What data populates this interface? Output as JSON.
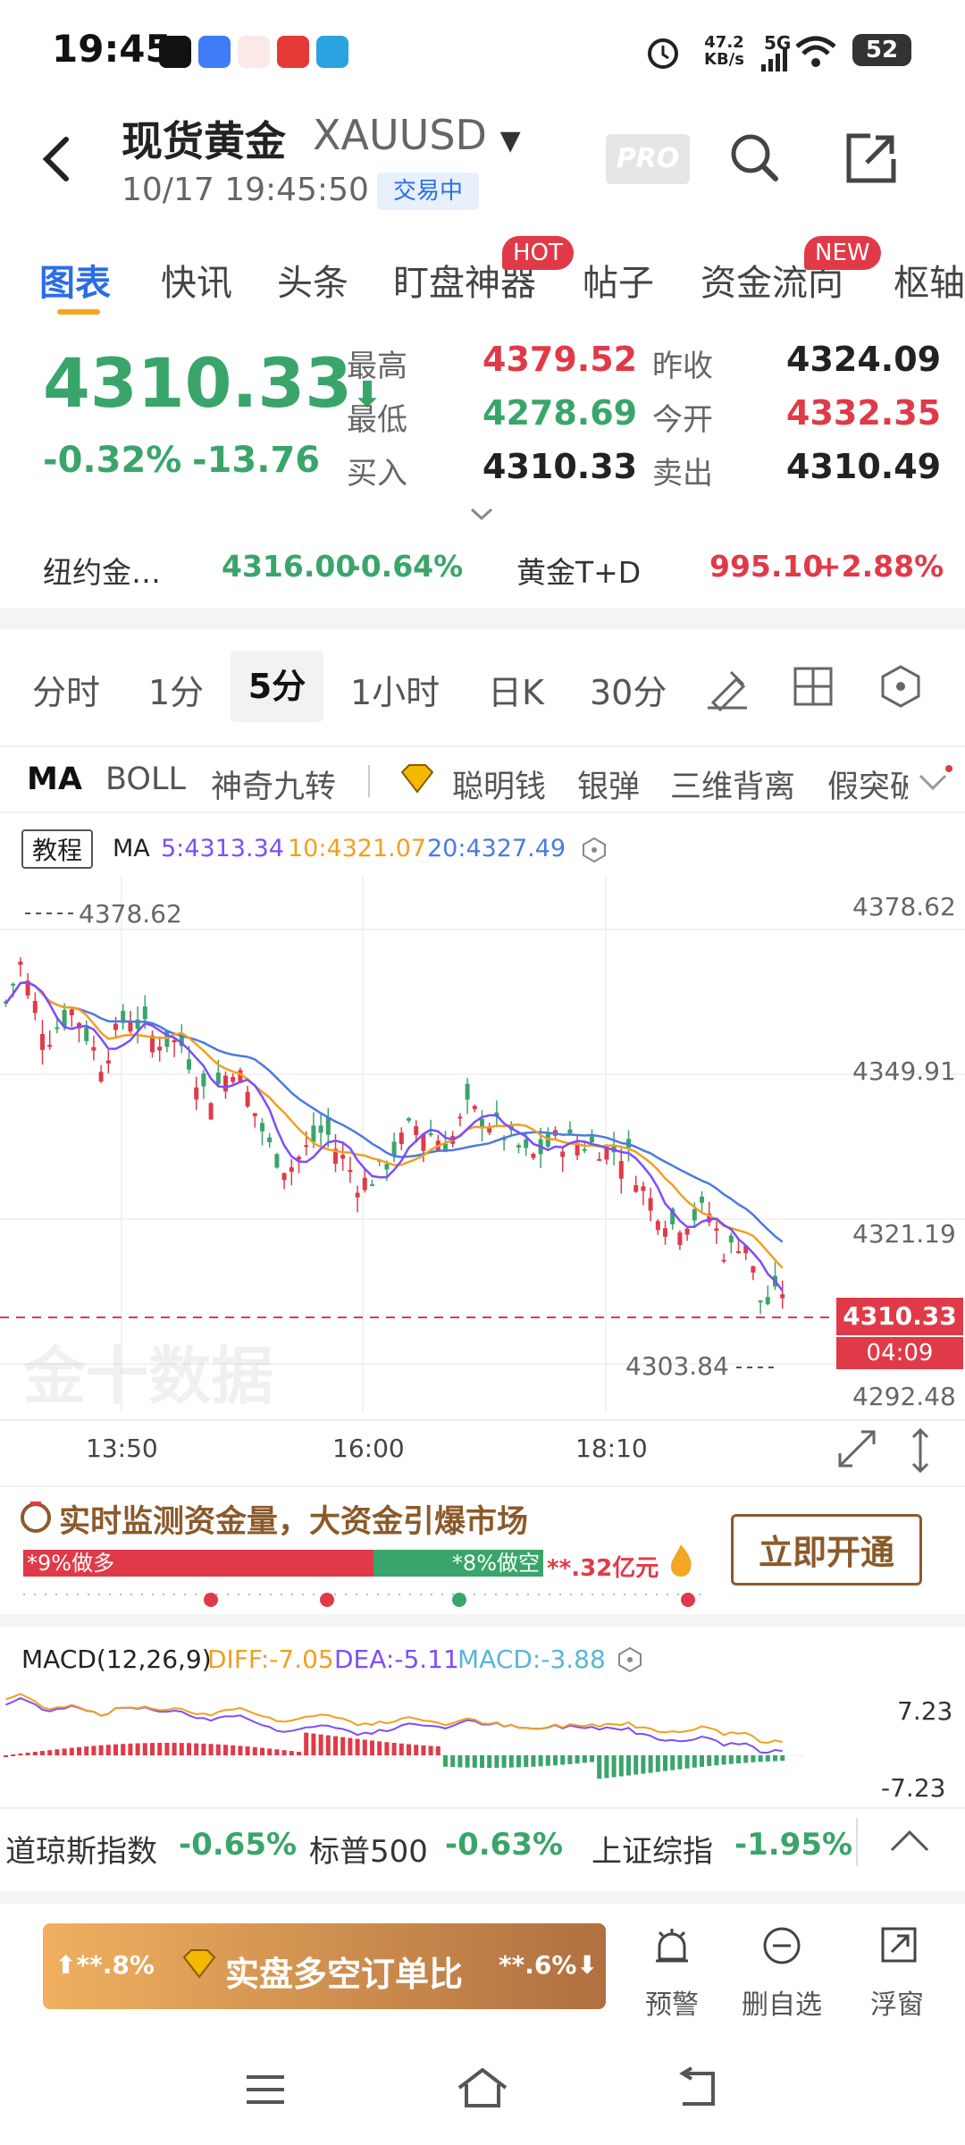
{
  "status_bar": {
    "time": "19:45",
    "net_speed": "47.2",
    "net_unit": "KB/s",
    "network": "5G",
    "battery": "52",
    "notification_apps": [
      "tiktok-icon",
      "browser-icon",
      "news-icon",
      "shop-icon",
      "telegram-icon"
    ]
  },
  "header": {
    "title": "现货黄金",
    "symbol": "XAUUSD",
    "datetime": "10/17 19:45:50",
    "trade_status": "交易中",
    "pro_label": "PRO"
  },
  "tabs": [
    {
      "label": "图表",
      "active": true
    },
    {
      "label": "快讯"
    },
    {
      "label": "头条"
    },
    {
      "label": "盯盘神器",
      "badge": "HOT"
    },
    {
      "label": "帖子"
    },
    {
      "label": "资金流向",
      "badge": "NEW"
    },
    {
      "label": "枢轴"
    }
  ],
  "quote": {
    "price": "4310.33",
    "change_pct": "-0.32%",
    "change": "-13.76",
    "high_label": "最高",
    "high": "4379.52",
    "low_label": "最低",
    "low": "4278.69",
    "bid_label": "买入",
    "bid": "4310.33",
    "prev_close_label": "昨收",
    "prev_close": "4324.09",
    "open_label": "今开",
    "open": "4332.35",
    "ask_label": "卖出",
    "ask": "4310.49"
  },
  "related": [
    {
      "name": "纽约金…",
      "price": "4316.00",
      "change": "-0.64%"
    },
    {
      "name": "黄金T+D",
      "price": "995.10",
      "change": "+2.88%"
    }
  ],
  "periods": [
    "分时",
    "1分",
    "5分",
    "1小时",
    "日K",
    "30分"
  ],
  "indicators": [
    "MA",
    "BOLL",
    "神奇九转",
    "聪明钱",
    "银弹",
    "三维背离",
    "假突破"
  ],
  "chart": {
    "tutorial_label": "教程",
    "ma_label": "MA",
    "ma5": "5:4313.34",
    "ma10": "10:4321.07",
    "ma20": "20:4327.49",
    "high_marker": "4378.62",
    "low_marker": "4303.84",
    "y_ticks": [
      "4378.62",
      "4349.91",
      "4321.19",
      "4292.48"
    ],
    "current_price": "4310.33",
    "countdown": "04:09",
    "x_ticks": [
      "13:50",
      "16:00",
      "18:10"
    ],
    "watermark": "金十数据"
  },
  "chart_data": {
    "type": "candlestick",
    "y_range": [
      4292.48,
      4378.62
    ],
    "ma5": 4313.34,
    "ma10": 4321.07,
    "ma20": 4327.49,
    "last": 4310.33
  },
  "promo": {
    "title": "实时监测资金量，大资金引爆市场",
    "long_label": "*9%做多",
    "short_label": "*8%做空",
    "amount": "**.32亿元",
    "cta": "立即开通"
  },
  "macd": {
    "label": "MACD(12,26,9)",
    "diff": "DIFF:-7.05",
    "dea": "DEA:-5.11",
    "macd": "MACD:-3.88",
    "y_top": "7.23",
    "y_bottom": "-7.23"
  },
  "tickers": [
    {
      "name": "道琼斯指数",
      "change": "-0.65%"
    },
    {
      "name": "标普500",
      "change": "-0.63%"
    },
    {
      "name": "上证综指",
      "change": "-1.95%"
    }
  ],
  "bottom": {
    "long_pct": "**.8%",
    "ratio_label": "实盘多空订单比",
    "short_pct": "**.6%",
    "actions": [
      "预警",
      "删自选",
      "浮窗"
    ]
  },
  "colors": {
    "up": "#e03a48",
    "down": "#3aa56a",
    "accent": "#2b6de8",
    "ma5": "#7c4dff",
    "ma10": "#f0a020",
    "ma20": "#4a7be0"
  }
}
